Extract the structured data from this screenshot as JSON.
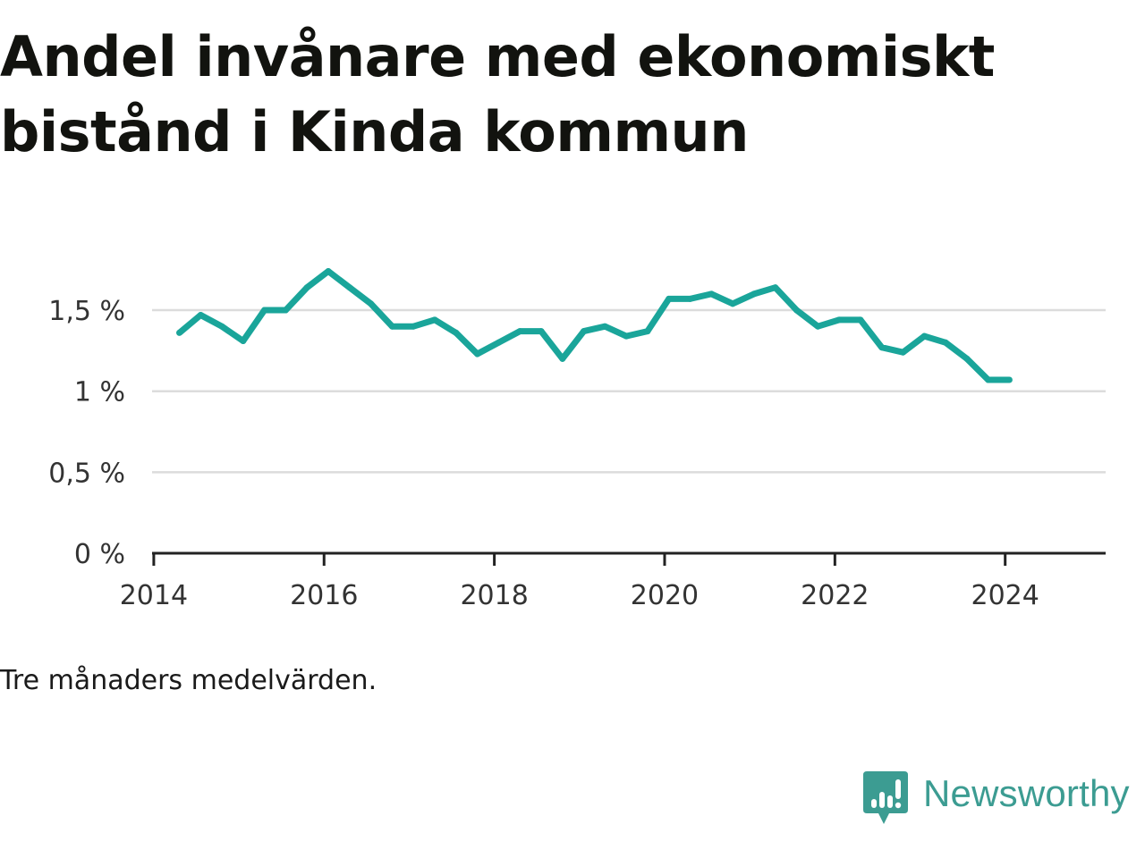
{
  "title": "Andel invånare med ekonomiskt bistånd i Kinda kommun",
  "note": "Tre månaders medelvärden.",
  "brand": {
    "name": "Newsworthy",
    "icon": "newsworthy-logo-icon",
    "color": "#3c9c92"
  },
  "colors": {
    "line": "#1aa59a",
    "grid": "#dcdcdc",
    "axis": "#222222",
    "text": "#333333"
  },
  "chart_data": {
    "type": "line",
    "title": "Andel invånare med ekonomiskt bistånd i Kinda kommun",
    "xlabel": "",
    "ylabel": "",
    "xlim": [
      2013.98,
      2025.18
    ],
    "ylim": [
      0,
      1.5
    ],
    "grid": true,
    "legend": "none",
    "x_ticks": [
      {
        "value": 2014,
        "label": "2014"
      },
      {
        "value": 2016,
        "label": "2016"
      },
      {
        "value": 2018,
        "label": "2018"
      },
      {
        "value": 2020,
        "label": "2020"
      },
      {
        "value": 2022,
        "label": "2022"
      },
      {
        "value": 2024,
        "label": "2024"
      }
    ],
    "y_ticks": [
      {
        "value": 0,
        "label": "0 %"
      },
      {
        "value": 0.5,
        "label": "0,5 %"
      },
      {
        "value": 1.0,
        "label": "1 %"
      },
      {
        "value": 1.5,
        "label": "1,5 %"
      }
    ],
    "series": [
      {
        "x": [
          2014.3,
          2014.55,
          2014.8,
          2015.05,
          2015.3,
          2015.55,
          2015.8,
          2016.05,
          2016.3,
          2016.55,
          2016.8,
          2017.05,
          2017.3,
          2017.55,
          2017.8,
          2018.05,
          2018.3,
          2018.55,
          2018.8,
          2019.05,
          2019.3,
          2019.55,
          2019.8,
          2020.05,
          2020.3,
          2020.55,
          2020.8,
          2021.05,
          2021.3,
          2021.55,
          2021.8,
          2022.05,
          2022.3,
          2022.55,
          2022.8,
          2023.05,
          2023.3,
          2023.55,
          2023.8,
          2024.05
        ],
        "y": [
          1.36,
          1.47,
          1.4,
          1.31,
          1.5,
          1.5,
          1.64,
          1.74,
          1.64,
          1.54,
          1.4,
          1.4,
          1.44,
          1.36,
          1.23,
          1.3,
          1.37,
          1.37,
          1.2,
          1.37,
          1.4,
          1.34,
          1.37,
          1.57,
          1.57,
          1.6,
          1.54,
          1.6,
          1.64,
          1.5,
          1.4,
          1.44,
          1.44,
          1.27,
          1.24,
          1.34,
          1.3,
          1.2,
          1.07,
          1.07
        ]
      }
    ]
  }
}
